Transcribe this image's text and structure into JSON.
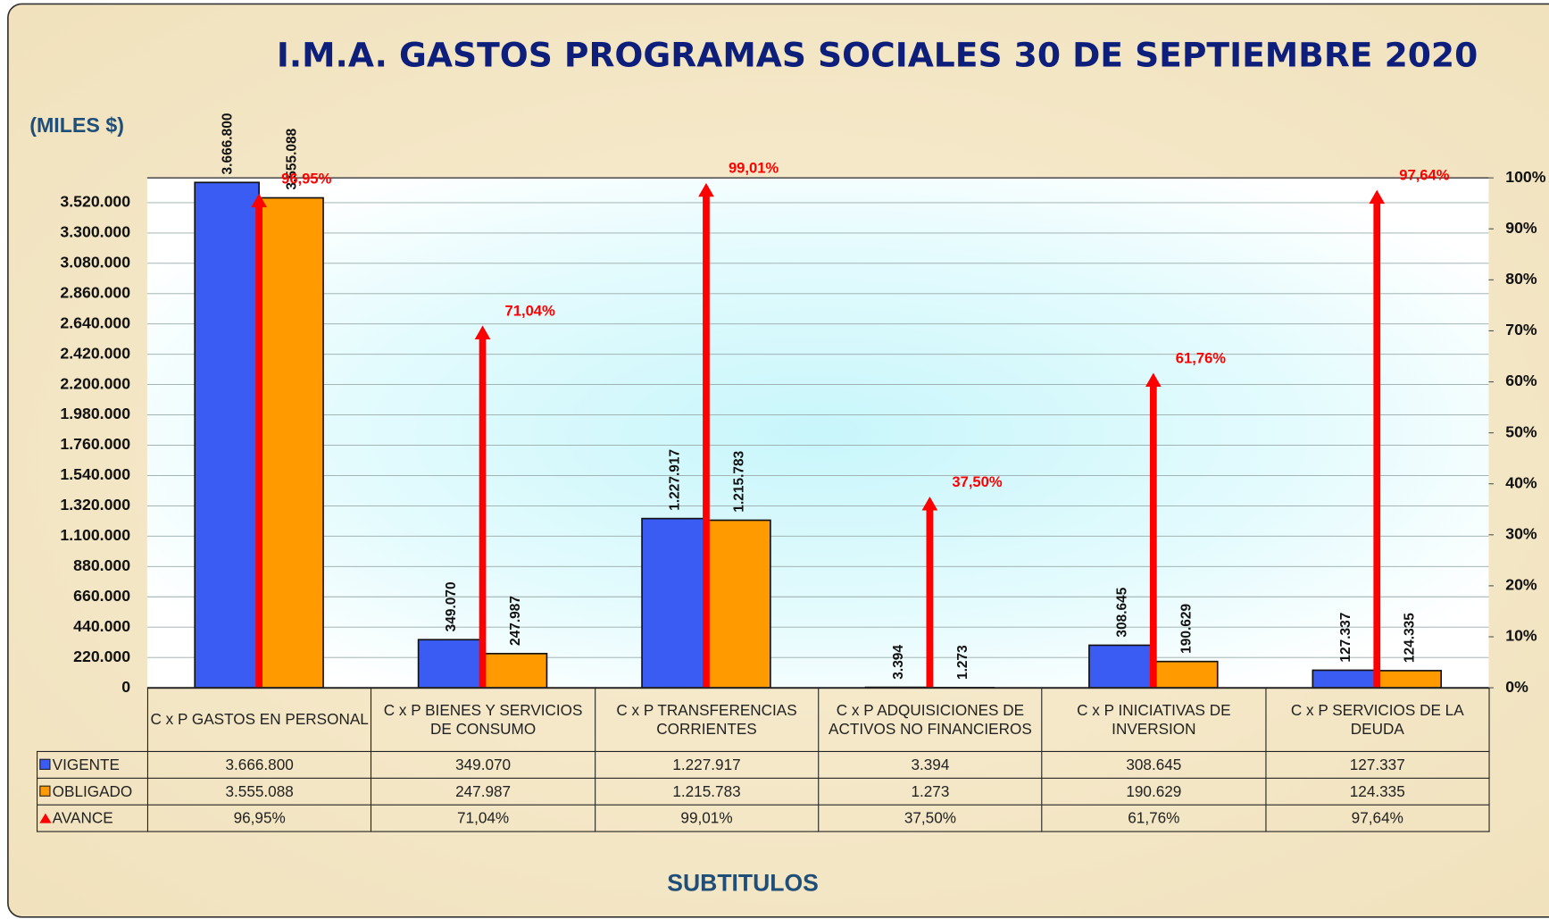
{
  "chart_data": {
    "type": "bar",
    "title": "I.M.A. GASTOS PROGRAMAS SOCIALES 30 DE SEPTIEMBRE 2020",
    "y_label": "(MILES $)",
    "x_label": "SUBTITULOS",
    "categories": [
      "C x P GASTOS EN PERSONAL",
      "C x P BIENES Y SERVICIOS DE CONSUMO",
      "C x P TRANSFERENCIAS CORRIENTES",
      "C x P ADQUISICIONES DE ACTIVOS NO FINANCIEROS",
      "C x P INICIATIVAS DE INVERSION",
      "C x P SERVICIOS DE LA DEUDA"
    ],
    "series": [
      {
        "name": "VIGENTE",
        "color": "#3b5cf2",
        "values": [
          3666800,
          349070,
          1227917,
          3394,
          308645,
          127337
        ],
        "value_labels": [
          "3.666.800",
          "349.070",
          "1.227.917",
          "3.394",
          "308.645",
          "127.337"
        ]
      },
      {
        "name": "OBLIGADO",
        "color": "#ff9a00",
        "values": [
          3555088,
          247987,
          1215783,
          1273,
          190629,
          124335
        ],
        "value_labels": [
          "3.555.088",
          "247.987",
          "1.215.783",
          "1.273",
          "190.629",
          "124.335"
        ]
      },
      {
        "name": "AVANCE",
        "color": "#ff0000",
        "axis": "y2",
        "values": [
          96.95,
          71.04,
          99.01,
          37.5,
          61.76,
          97.64
        ],
        "value_labels": [
          "96,95%",
          "71,04%",
          "99,01%",
          "37,50%",
          "61,76%",
          "97,64%"
        ]
      }
    ],
    "ylim": [
      0,
      3700000
    ],
    "yticks": [
      0,
      {
        "value": 220000,
        "label": "220.000"
      },
      {
        "value": 440000,
        "label": "440.000"
      },
      {
        "value": 660000,
        "label": "660.000"
      },
      {
        "value": 880000,
        "label": "880.000"
      },
      {
        "value": 1100000,
        "label": "1.100.000"
      },
      {
        "value": 1320000,
        "label": "1.320.000"
      },
      {
        "value": 1540000,
        "label": "1.540.000"
      },
      {
        "value": 1760000,
        "label": "1.760.000"
      },
      {
        "value": 1980000,
        "label": "1.980.000"
      },
      {
        "value": 2200000,
        "label": "2.200.000"
      },
      {
        "value": 2420000,
        "label": "2.420.000"
      },
      {
        "value": 2640000,
        "label": "2.640.000"
      },
      {
        "value": 2860000,
        "label": "2.860.000"
      },
      {
        "value": 3080000,
        "label": "3.080.000"
      },
      {
        "value": 3300000,
        "label": "3.300.000"
      },
      {
        "value": 3520000,
        "label": "3.520.000"
      }
    ],
    "y2lim": [
      0,
      100
    ],
    "y2ticks": [
      {
        "value": 0,
        "label": "0%"
      },
      {
        "value": 10,
        "label": "10%"
      },
      {
        "value": 20,
        "label": "20%"
      },
      {
        "value": 30,
        "label": "30%"
      },
      {
        "value": 40,
        "label": "40%"
      },
      {
        "value": 50,
        "label": "50%"
      },
      {
        "value": 60,
        "label": "60%"
      },
      {
        "value": 70,
        "label": "70%"
      },
      {
        "value": 80,
        "label": "80%"
      },
      {
        "value": 90,
        "label": "90%"
      },
      {
        "value": 100,
        "label": "100%"
      }
    ],
    "grid": true
  }
}
